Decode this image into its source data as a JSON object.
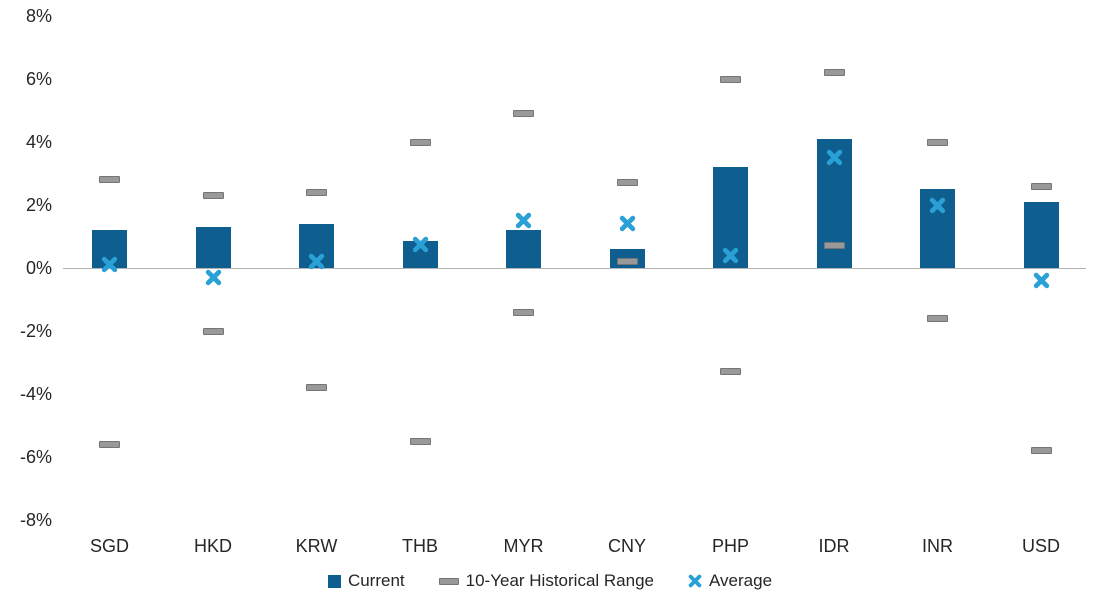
{
  "chart_data": {
    "type": "bar",
    "title": "",
    "xlabel": "",
    "ylabel": "",
    "categories": [
      "SGD",
      "HKD",
      "KRW",
      "THB",
      "MYR",
      "CNY",
      "PHP",
      "IDR",
      "INR",
      "USD"
    ],
    "series": [
      {
        "name": "Current",
        "type": "bar",
        "values": [
          1.2,
          1.3,
          1.4,
          0.85,
          1.2,
          0.6,
          3.2,
          4.1,
          2.5,
          2.1
        ]
      },
      {
        "name": "10-Year Historical Range",
        "type": "range",
        "high": [
          2.8,
          2.3,
          2.4,
          4.0,
          4.9,
          2.7,
          6.0,
          6.2,
          4.0,
          2.6
        ],
        "low": [
          -5.6,
          -2.0,
          -3.8,
          -5.5,
          -1.4,
          0.2,
          -3.3,
          0.7,
          -1.6,
          -5.8
        ]
      },
      {
        "name": "Average",
        "type": "scatter-x",
        "values": [
          0.1,
          -0.3,
          0.2,
          0.75,
          1.5,
          1.4,
          0.4,
          3.5,
          2.0,
          -0.4
        ]
      }
    ],
    "ylim": [
      -8,
      8
    ],
    "yticks": [
      8,
      6,
      4,
      2,
      0,
      -2,
      -4,
      -6,
      -8
    ],
    "ytick_labels": [
      "8%",
      "6%",
      "4%",
      "2%",
      "0%",
      "-2%",
      "-4%",
      "-6%",
      "-8%"
    ],
    "grid": false,
    "legend_position": "bottom"
  },
  "legend": {
    "current_label": "Current",
    "range_label": "10-Year Historical Range",
    "average_label": "Average"
  },
  "colors": {
    "bar": "#0e5e90",
    "range_fill": "#999999",
    "range_border": "#757575",
    "average": "#29a0d6",
    "axis_line": "#b3b3b3",
    "text": "#262626"
  }
}
